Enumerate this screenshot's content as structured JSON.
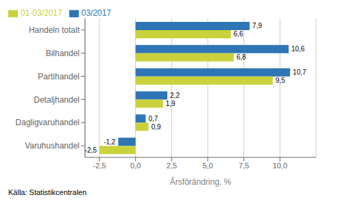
{
  "chart_data": {
    "type": "bar",
    "orientation": "horizontal",
    "categories": [
      "Varuhushandel",
      "Dagligvaruhandel",
      "Detaljhandel",
      "Partihandel",
      "Bilhandel",
      "Handeln totalt"
    ],
    "series": [
      {
        "name": "03/2017",
        "color": "#2E75B6",
        "values": [
          -1.2,
          0.7,
          2.2,
          10.7,
          10.6,
          7.9
        ],
        "value_labels": [
          "-1,2",
          "0,7",
          "2,2",
          "10,7",
          "10,6",
          "7,9"
        ]
      },
      {
        "name": "01-03/2017",
        "color": "#C9D23C",
        "values": [
          -2.5,
          0.9,
          1.9,
          9.5,
          6.8,
          6.6
        ],
        "value_labels": [
          "-2,5",
          "0,9",
          "1,9",
          "9,5",
          "6,8",
          "6,6"
        ]
      }
    ],
    "xlabel": "Årsförändring, %",
    "xlim": [
      -3.5,
      12.5
    ],
    "xticks": [
      {
        "value": -2.5,
        "label": "-2,5"
      },
      {
        "value": 0.0,
        "label": "0,0"
      },
      {
        "value": 2.5,
        "label": "2,5"
      },
      {
        "value": 5.0,
        "label": "5,0"
      },
      {
        "value": 7.5,
        "label": "7,5"
      },
      {
        "value": 10.0,
        "label": "10,0"
      }
    ],
    "grid": true,
    "legend": "upper left",
    "data_labels": true,
    "annotations": [
      "Källa: Statistikcentralen"
    ]
  }
}
